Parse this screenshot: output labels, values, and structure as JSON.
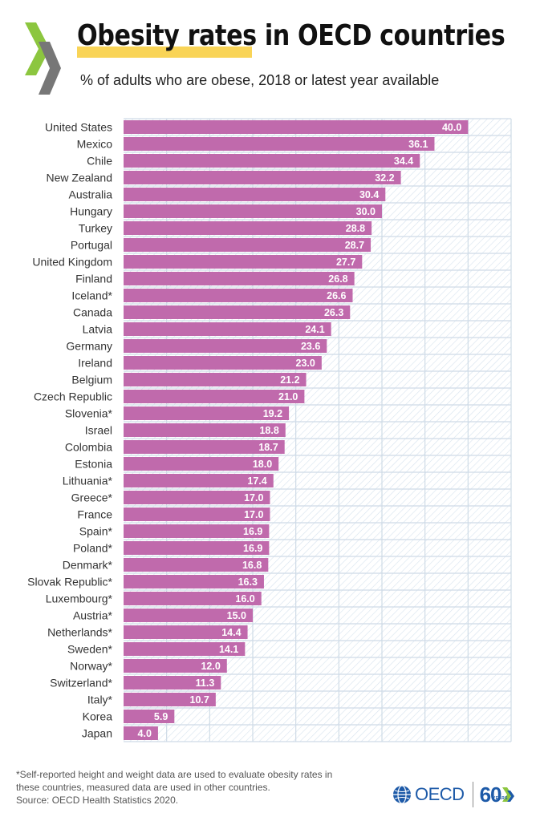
{
  "title": "Obesity rates in OECD countries",
  "subtitle": "% of adults who are obese, 2018 or latest year available",
  "colors": {
    "bar": "#c06aac",
    "grid": "#cfdbe7",
    "hatch": "#d6e2ee",
    "accent_yellow": "#f9d457",
    "brand_blue": "#1d5aa8",
    "chevron_green": "#8cc63f",
    "chevron_gray": "#777777"
  },
  "chart_data": {
    "type": "bar",
    "orientation": "horizontal",
    "title": "Obesity rates in OECD countries",
    "xlabel": "",
    "ylabel": "",
    "xlim": [
      0,
      45
    ],
    "grid": true,
    "categories": [
      "United States",
      "Mexico",
      "Chile",
      "New Zealand",
      "Australia",
      "Hungary",
      "Turkey",
      "Portugal",
      "United Kingdom",
      "Finland",
      "Iceland*",
      "Canada",
      "Latvia",
      "Germany",
      "Ireland",
      "Belgium",
      "Czech Republic",
      "Slovenia*",
      "Israel",
      "Colombia",
      "Estonia",
      "Lithuania*",
      "Greece*",
      "France",
      "Spain*",
      "Poland*",
      "Denmark*",
      "Slovak Republic*",
      "Luxembourg*",
      "Austria*",
      "Netherlands*",
      "Sweden*",
      "Norway*",
      "Switzerland*",
      "Italy*",
      "Korea",
      "Japan"
    ],
    "values": [
      40.0,
      36.1,
      34.4,
      32.2,
      30.4,
      30.0,
      28.8,
      28.7,
      27.7,
      26.8,
      26.6,
      26.3,
      24.1,
      23.6,
      23.0,
      21.2,
      21.0,
      19.2,
      18.8,
      18.7,
      18.0,
      17.4,
      17.0,
      17.0,
      16.9,
      16.9,
      16.8,
      16.3,
      16.0,
      15.0,
      14.4,
      14.1,
      12.0,
      11.3,
      10.7,
      5.9,
      4.0
    ],
    "value_labels": [
      "40.0",
      "36.1",
      "34.4",
      "32.2",
      "30.4",
      "30.0",
      "28.8",
      "28.7",
      "27.7",
      "26.8",
      "26.6",
      "26.3",
      "24.1",
      "23.6",
      "23.0",
      "21.2",
      "21.0",
      "19.2",
      "18.8",
      "18.7",
      "18.0",
      "17.4",
      "17.0",
      "17.0",
      "16.9",
      "16.9",
      "16.8",
      "16.3",
      "16.0",
      "15.0",
      "14.4",
      "14.1",
      "12.0",
      "11.3",
      "10.7",
      "5.9",
      "4.0"
    ]
  },
  "footnote": {
    "line1": "*Self-reported height and weight data are used to evaluate obesity rates in",
    "line2": "these countries, measured data are used in other countries.",
    "line3": "Source: OECD Health Statistics 2020."
  },
  "brand": {
    "name": "OECD",
    "anniversary_number": "60",
    "anniversary_word": "YEARS"
  }
}
